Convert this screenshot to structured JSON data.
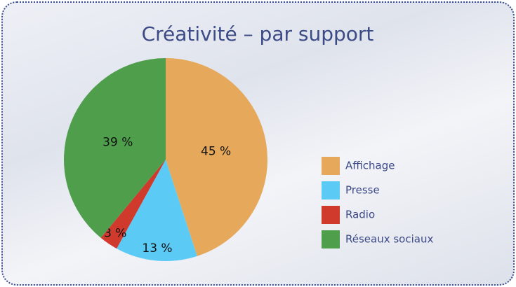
{
  "chart_data": {
    "type": "pie",
    "title": "Créativité – par support",
    "categories": [
      "Affichage",
      "Presse",
      "Radio",
      "Réseaux sociaux"
    ],
    "values": [
      45,
      13,
      3,
      39
    ],
    "value_labels": [
      "45 %",
      "13 %",
      "3 %",
      "39 %"
    ],
    "colors": [
      "#e6a95c",
      "#5bcbf5",
      "#cf3a2c",
      "#4e9e4c"
    ],
    "legend": "right"
  }
}
